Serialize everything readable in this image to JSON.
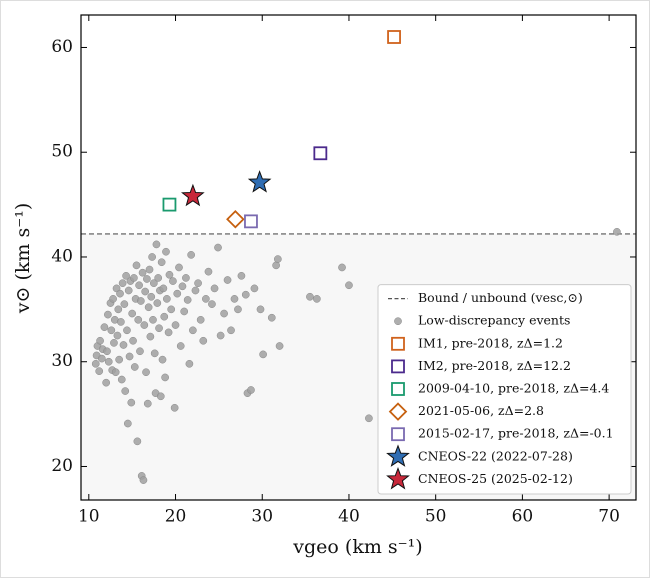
{
  "chart_data": {
    "type": "scatter",
    "xlabel": "vgeo (km s⁻¹)",
    "ylabel": "v⊙ (km s⁻¹)",
    "xlim": [
      9.1,
      73.1
    ],
    "ylim": [
      16.8,
      63.1
    ],
    "xticks": [
      10,
      20,
      30,
      40,
      50,
      60,
      70
    ],
    "yticks": [
      20,
      30,
      40,
      50,
      60
    ],
    "bound_line": {
      "name": "Bound / unbound (vesc,⊙)",
      "value": 42.2,
      "color": "#555555"
    },
    "legend": "lower right",
    "series": [
      {
        "name": "Low-discrepancy events",
        "marker": "circle",
        "color": "#a0a0a0",
        "x": [
          10.8,
          10.9,
          11.0,
          11.2,
          11.3,
          11.5,
          11.6,
          11.8,
          12.0,
          12.1,
          12.2,
          12.3,
          12.5,
          12.6,
          12.7,
          12.8,
          12.9,
          13.0,
          13.1,
          13.2,
          13.3,
          13.4,
          13.5,
          13.6,
          13.7,
          13.8,
          13.9,
          14.0,
          14.1,
          14.2,
          14.3,
          14.4,
          14.5,
          14.6,
          14.7,
          14.8,
          14.9,
          15.0,
          15.1,
          15.2,
          15.3,
          15.4,
          15.5,
          15.6,
          15.7,
          15.8,
          15.9,
          16.0,
          16.1,
          16.2,
          16.3,
          16.4,
          16.5,
          16.6,
          16.7,
          16.8,
          16.9,
          17.0,
          17.1,
          17.2,
          17.3,
          17.4,
          17.5,
          17.6,
          17.7,
          17.8,
          17.9,
          18.0,
          18.1,
          18.2,
          18.3,
          18.4,
          18.5,
          18.6,
          18.7,
          18.8,
          18.9,
          19.0,
          19.2,
          19.3,
          19.5,
          19.7,
          19.9,
          20.0,
          20.2,
          20.4,
          20.6,
          20.8,
          21.0,
          21.2,
          21.4,
          21.6,
          21.8,
          22.0,
          22.3,
          22.6,
          22.9,
          23.2,
          23.5,
          23.8,
          24.2,
          24.5,
          24.9,
          25.2,
          25.6,
          26.0,
          26.4,
          26.8,
          27.2,
          27.6,
          28.1,
          28.3,
          28.7,
          29.1,
          29.8,
          30.1,
          31.1,
          31.6,
          31.8,
          32.0,
          35.5,
          36.3,
          39.2,
          40.0,
          42.3,
          70.9
        ],
        "values": [
          29.8,
          30.6,
          31.5,
          29.1,
          32.0,
          30.3,
          31.2,
          33.3,
          28.0,
          31.0,
          34.5,
          30.0,
          35.6,
          33.0,
          29.2,
          36.0,
          31.8,
          34.0,
          29.0,
          37.0,
          32.5,
          35.0,
          30.2,
          36.5,
          33.8,
          28.3,
          37.5,
          31.6,
          35.5,
          27.2,
          38.2,
          33.0,
          24.1,
          36.8,
          30.5,
          37.7,
          26.1,
          34.6,
          32.0,
          38.0,
          29.5,
          36.0,
          39.2,
          22.4,
          34.0,
          37.3,
          31.0,
          35.8,
          19.1,
          38.5,
          18.7,
          33.5,
          36.7,
          29.0,
          37.9,
          26.0,
          35.2,
          38.8,
          32.4,
          36.2,
          40.0,
          34.0,
          37.5,
          30.8,
          27.0,
          41.2,
          35.6,
          38.0,
          33.2,
          36.8,
          26.7,
          39.5,
          30.2,
          37.0,
          34.3,
          28.5,
          40.5,
          36.0,
          32.8,
          38.3,
          35.0,
          37.7,
          25.6,
          33.5,
          36.5,
          39.0,
          31.5,
          37.2,
          34.8,
          38.0,
          35.9,
          29.8,
          40.2,
          33.0,
          36.8,
          37.5,
          34.0,
          32.0,
          36.0,
          38.6,
          35.5,
          37.0,
          40.9,
          32.5,
          34.6,
          37.8,
          33.0,
          36.0,
          35.0,
          38.2,
          36.4,
          27.0,
          27.3,
          37.0,
          35.0,
          30.7,
          34.2,
          39.2,
          39.8,
          31.5,
          36.2,
          36.0,
          39.0,
          37.3,
          24.6,
          42.4
        ]
      },
      {
        "name": "IM1, pre-2018, zΔ=1.2",
        "marker": "square",
        "color": "#d0621c",
        "x": [
          45.2
        ],
        "values": [
          61.0
        ]
      },
      {
        "name": "IM2, pre-2018, zΔ=12.2",
        "marker": "square",
        "color": "#4b2a8c",
        "x": [
          36.7
        ],
        "values": [
          49.9
        ]
      },
      {
        "name": "2009-04-10, pre-2018, zΔ=4.4",
        "marker": "square",
        "color": "#1a9a6e",
        "x": [
          19.3
        ],
        "values": [
          45.0
        ]
      },
      {
        "name": "2021-05-06, zΔ=2.8",
        "marker": "diamond",
        "color": "#c6600f",
        "x": [
          26.9
        ],
        "values": [
          43.6
        ]
      },
      {
        "name": "2015-02-17, pre-2018, zΔ=-0.1",
        "marker": "square",
        "color": "#7a6ab0",
        "x": [
          28.7
        ],
        "values": [
          43.4
        ]
      },
      {
        "name": "CNEOS-22 (2022-07-28)",
        "marker": "star",
        "color": "#2f6db3",
        "x": [
          29.7
        ],
        "values": [
          47.1
        ]
      },
      {
        "name": "CNEOS-25 (2025-02-12)",
        "marker": "star",
        "color": "#c8283a",
        "x": [
          22.0
        ],
        "values": [
          45.8
        ]
      }
    ]
  }
}
